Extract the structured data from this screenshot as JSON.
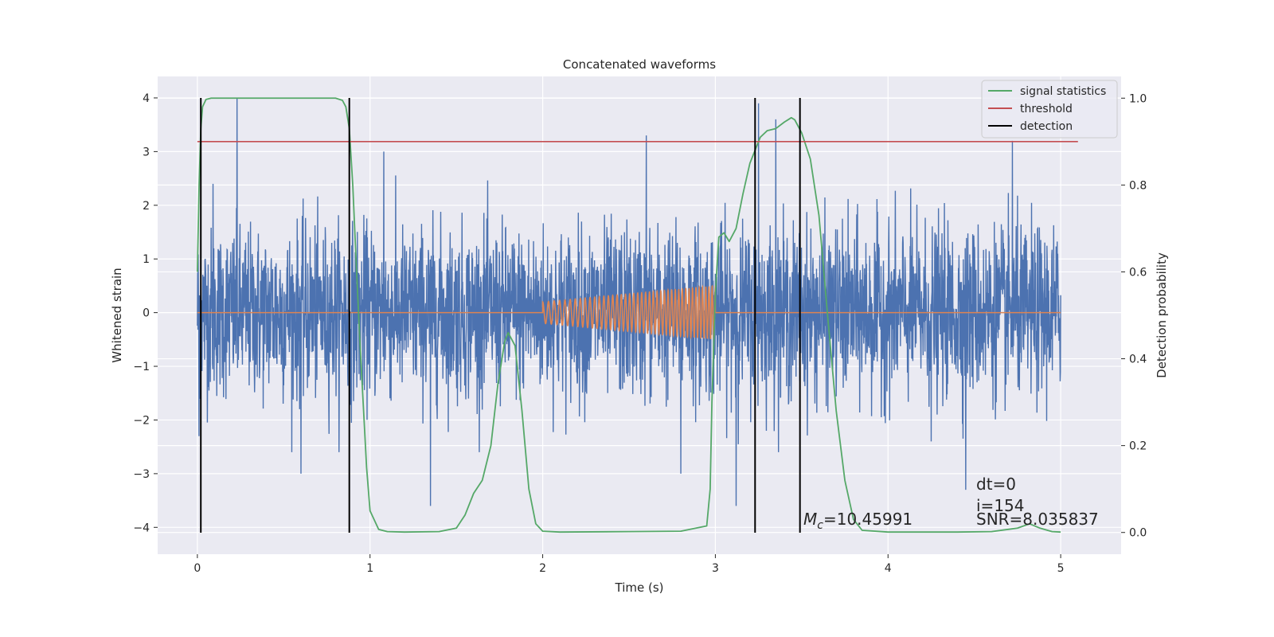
{
  "chart_data": {
    "type": "line",
    "title": "Concatenated waveforms",
    "xlabel": "Time (s)",
    "ylabel": "Whitened strain",
    "y2label": "Detection probability",
    "xlim": [
      -0.23,
      5.35
    ],
    "ylim": [
      -4.5,
      4.4
    ],
    "y2lim": [
      -0.05,
      1.05
    ],
    "xticks": [
      0,
      1,
      2,
      3,
      4,
      5
    ],
    "xtick_labels": [
      "0",
      "1",
      "2",
      "3",
      "4",
      "5"
    ],
    "yticks": [
      -4,
      -3,
      -2,
      -1,
      0,
      1,
      2,
      3,
      4
    ],
    "ytick_labels": [
      "−4",
      "−3",
      "−2",
      "−1",
      "0",
      "1",
      "2",
      "3",
      "4"
    ],
    "y2ticks": [
      0.0,
      0.2,
      0.4,
      0.6,
      0.8,
      1.0
    ],
    "y2tick_labels": [
      "0.0",
      "0.2",
      "0.4",
      "0.6",
      "0.8",
      "1.0"
    ],
    "grid": true,
    "legend_position": "top-right",
    "noise": {
      "x_range": [
        0,
        5
      ],
      "typical_amplitude": 1.0,
      "max": 4.0,
      "min": -3.6,
      "color": "#4c72b0",
      "spikes": [
        [
          0.23,
          4.0
        ],
        [
          0.09,
          2.4
        ],
        [
          1.08,
          3.0
        ],
        [
          2.6,
          3.3
        ],
        [
          3.25,
          3.9
        ],
        [
          3.35,
          3.6
        ],
        [
          4.72,
          3.2
        ],
        [
          1.35,
          -3.6
        ],
        [
          3.12,
          -3.6
        ],
        [
          4.45,
          -3.3
        ],
        [
          2.8,
          -3.0
        ],
        [
          0.01,
          -2.3
        ],
        [
          0.6,
          -3.0
        ],
        [
          4.25,
          -2.4
        ]
      ]
    },
    "chirp": {
      "color": "#dd8452",
      "x_start": 2.0,
      "x_end": 3.0,
      "amp_start": 0.2,
      "amp_end": 0.5,
      "cycles": 42
    },
    "series": [
      {
        "name": "signal statistics",
        "axis": "right",
        "color": "#55a868",
        "x": [
          0,
          0.01,
          0.02,
          0.03,
          0.05,
          0.08,
          0.12,
          0.2,
          0.4,
          0.6,
          0.8,
          0.84,
          0.86,
          0.88,
          0.9,
          0.92,
          0.94,
          0.96,
          0.98,
          1.0,
          1.05,
          1.1,
          1.2,
          1.4,
          1.5,
          1.55,
          1.6,
          1.65,
          1.7,
          1.74,
          1.78,
          1.8,
          1.84,
          1.88,
          1.92,
          1.96,
          2.0,
          2.1,
          2.5,
          2.8,
          2.95,
          2.97,
          2.98,
          3.0,
          3.02,
          3.05,
          3.08,
          3.12,
          3.16,
          3.2,
          3.26,
          3.3,
          3.35,
          3.4,
          3.44,
          3.46,
          3.5,
          3.55,
          3.6,
          3.65,
          3.7,
          3.75,
          3.8,
          3.85,
          4.0,
          4.4,
          4.6,
          4.75,
          4.82,
          4.88,
          4.95,
          5.0
        ],
        "y": [
          0.6,
          0.8,
          0.93,
          0.98,
          0.997,
          1.0,
          1.0,
          1.0,
          1.0,
          1.0,
          1.0,
          0.995,
          0.98,
          0.93,
          0.8,
          0.62,
          0.45,
          0.3,
          0.15,
          0.05,
          0.007,
          0.002,
          0.001,
          0.002,
          0.01,
          0.04,
          0.09,
          0.12,
          0.2,
          0.34,
          0.44,
          0.46,
          0.43,
          0.28,
          0.1,
          0.02,
          0.003,
          0.001,
          0.002,
          0.003,
          0.015,
          0.1,
          0.3,
          0.55,
          0.68,
          0.69,
          0.67,
          0.7,
          0.78,
          0.85,
          0.91,
          0.925,
          0.93,
          0.945,
          0.955,
          0.95,
          0.92,
          0.86,
          0.73,
          0.5,
          0.28,
          0.12,
          0.03,
          0.005,
          0.001,
          0.001,
          0.002,
          0.01,
          0.02,
          0.01,
          0.002,
          0.001
        ]
      },
      {
        "name": "threshold",
        "axis": "right",
        "color": "#c44e52",
        "x": [
          0,
          5.1
        ],
        "y": [
          0.9,
          0.9
        ]
      },
      {
        "name": "detection",
        "axis": "left",
        "color": "#000000",
        "vlines": [
          0.02,
          0.88,
          3.23,
          3.49
        ],
        "ymin": -4.1,
        "ymax": 4.0
      }
    ],
    "annotations": {
      "mc_label": "M",
      "mc_sub": "c",
      "mc_value": "=10.45991",
      "dt": "dt=0",
      "i": "i=154",
      "snr": "SNR=8.035837"
    },
    "colors": {
      "axes_bg": "#eaeaf2",
      "grid": "#ffffff",
      "legend_bg": "#eaeaf2",
      "legend_border": "#cccccc"
    }
  }
}
